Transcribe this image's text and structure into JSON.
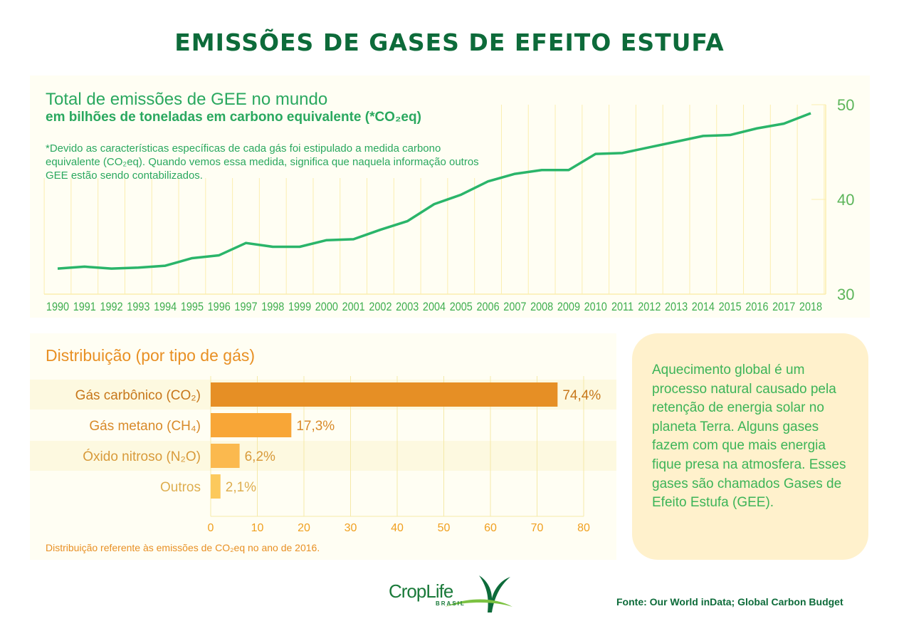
{
  "title": "EMISSÕES DE GASES DE EFEITO ESTUFA",
  "chart_data": [
    {
      "type": "line",
      "title": "Total de emissões de GEE no mundo",
      "subtitle": "em bilhões de toneladas em carbono equivalente (*CO₂eq)",
      "note": "*Devido as características específicas de cada gás foi estipulado a medida carbono equivalente (CO₂eq). Quando vemos essa medida, significa que naquela informação outros GEE estão sendo contabilizados.",
      "x": [
        1990,
        1991,
        1992,
        1993,
        1994,
        1995,
        1996,
        1997,
        1998,
        1999,
        2000,
        2001,
        2002,
        2003,
        2004,
        2005,
        2006,
        2007,
        2008,
        2009,
        2010,
        2011,
        2012,
        2013,
        2014,
        2015,
        2016,
        2017,
        2018
      ],
      "y": [
        32.7,
        32.9,
        32.7,
        32.8,
        33.0,
        33.8,
        34.1,
        35.4,
        35.0,
        35.0,
        35.7,
        35.8,
        36.8,
        37.7,
        39.5,
        40.5,
        41.9,
        42.7,
        43.1,
        43.1,
        44.8,
        44.9,
        45.5,
        46.1,
        46.7,
        46.8,
        47.5,
        48.0,
        49.1
      ],
      "ylim": [
        30,
        50
      ],
      "yticks": [
        "30",
        "40",
        "50"
      ],
      "ylabel": "",
      "xlabel": "",
      "grid": true,
      "color": "#2ab56a"
    },
    {
      "type": "bar",
      "title": "Distribuição (por tipo de gás)",
      "categories": [
        "Gás carbônico (CO₂)",
        "Gás metano (CH₄)",
        "Óxido nitroso (N₂O)",
        "Outros"
      ],
      "values": [
        74.4,
        17.3,
        6.2,
        2.1
      ],
      "labels": [
        "74,4%",
        "17,3%",
        "6,2%",
        "2,1%"
      ],
      "colors": [
        "#e68f25",
        "#f8a637",
        "#fbb94e",
        "#fcc95c"
      ],
      "label_colors": [
        "#c7771a",
        "#d88a2a",
        "#d89a3a",
        "#deae4f"
      ],
      "xlim": [
        0,
        80
      ],
      "xticks": [
        "0",
        "10",
        "20",
        "30",
        "40",
        "50",
        "60",
        "70",
        "80"
      ],
      "note": "Distribuição referente às emissões de CO₂eq no ano de 2016."
    }
  ],
  "side_text": "Aquecimento global é um processo natural causado pela retenção de energia solar no planeta Terra. Alguns gases fazem com que mais energia fique presa na atmosfera. Esses gases são chamados Gases de Efeito Estufa (GEE).",
  "logo": {
    "name": "CropLife",
    "sub": "BRASIL"
  },
  "source": "Fonte: Our World inData; Global Carbon Budget"
}
